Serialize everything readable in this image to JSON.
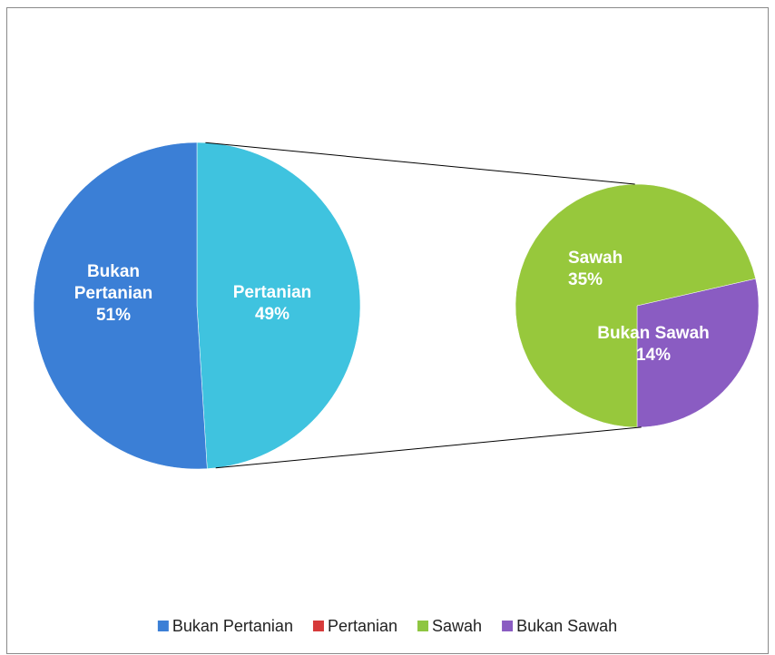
{
  "chart_data": {
    "type": "pie-of-pie",
    "categories": [
      "Bukan Pertanian",
      "Pertanian",
      "Sawah",
      "Bukan Sawah"
    ],
    "values": [
      51,
      49,
      35,
      14
    ],
    "value_labels": [
      "51%",
      "49%",
      "35%",
      "14%"
    ],
    "colors": [
      "#3b7fd6",
      "#3fc3df",
      "#97c83c",
      "#8a5cc2"
    ],
    "legend_colors": [
      "#3b7fd6",
      "#d63a3a",
      "#8ec641",
      "#8a5cc2"
    ],
    "main": [
      0,
      1
    ],
    "secondary": [
      2,
      3
    ],
    "split": 1,
    "legend": "bottom"
  }
}
